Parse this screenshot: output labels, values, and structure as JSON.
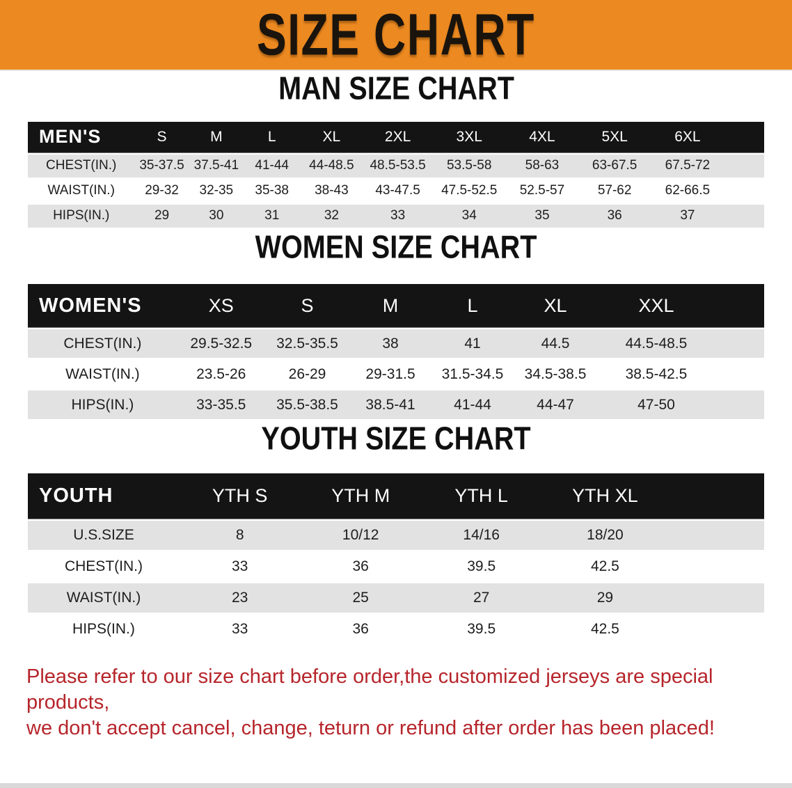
{
  "banner": {
    "title": "SIZE CHART"
  },
  "colors": {
    "banner_background": "#ec8a21",
    "table_header_bar": "#141414",
    "row_stripe": "#e2e2e2",
    "disclaimer_text": "#b6252b"
  },
  "sections": [
    {
      "id": "men",
      "title": "MAN SIZE CHART",
      "table": {
        "header_label": "MEN'S",
        "columns": [
          "S",
          "M",
          "L",
          "XL",
          "2XL",
          "3XL",
          "4XL",
          "5XL",
          "6XL"
        ],
        "rows": [
          {
            "label": "CHEST(IN.)",
            "values": [
              "35-37.5",
              "37.5-41",
              "41-44",
              "44-48.5",
              "48.5-53.5",
              "53.5-58",
              "58-63",
              "63-67.5",
              "67.5-72"
            ]
          },
          {
            "label": "WAIST(IN.)",
            "values": [
              "29-32",
              "32-35",
              "35-38",
              "38-43",
              "43-47.5",
              "47.5-52.5",
              "52.5-57",
              "57-62",
              "62-66.5"
            ]
          },
          {
            "label": "HIPS(IN.)",
            "values": [
              "29",
              "30",
              "31",
              "32",
              "33",
              "34",
              "35",
              "36",
              "37"
            ]
          }
        ]
      }
    },
    {
      "id": "women",
      "title": "WOMEN SIZE CHART",
      "table": {
        "header_label": "WOMEN'S",
        "columns": [
          "XS",
          "S",
          "M",
          "L",
          "XL",
          "XXL"
        ],
        "rows": [
          {
            "label": "CHEST(IN.)",
            "values": [
              "29.5-32.5",
              "32.5-35.5",
              "38",
              "41",
              "44.5",
              "44.5-48.5"
            ]
          },
          {
            "label": "WAIST(IN.)",
            "values": [
              "23.5-26",
              "26-29",
              "29-31.5",
              "31.5-34.5",
              "34.5-38.5",
              "38.5-42.5"
            ]
          },
          {
            "label": "HIPS(IN.)",
            "values": [
              "33-35.5",
              "35.5-38.5",
              "38.5-41",
              "41-44",
              "44-47",
              "47-50"
            ]
          }
        ]
      }
    },
    {
      "id": "youth",
      "title": "YOUTH SIZE CHART",
      "table": {
        "header_label": "YOUTH",
        "columns": [
          "YTH S",
          "YTH M",
          "YTH L",
          "YTH XL"
        ],
        "rows": [
          {
            "label": "U.S.SIZE",
            "values": [
              "8",
              "10/12",
              "14/16",
              "18/20"
            ]
          },
          {
            "label": "CHEST(IN.)",
            "values": [
              "33",
              "36",
              "39.5",
              "42.5"
            ]
          },
          {
            "label": "WAIST(IN.)",
            "values": [
              "23",
              "25",
              "27",
              "29"
            ]
          },
          {
            "label": "HIPS(IN.)",
            "values": [
              "33",
              "36",
              "39.5",
              "42.5"
            ]
          }
        ]
      }
    }
  ],
  "disclaimer": {
    "line1": "Please refer to our size chart before order,the customized jerseys are special products,",
    "line2": "we don't accept cancel, change, teturn or refund after order has been placed!"
  }
}
